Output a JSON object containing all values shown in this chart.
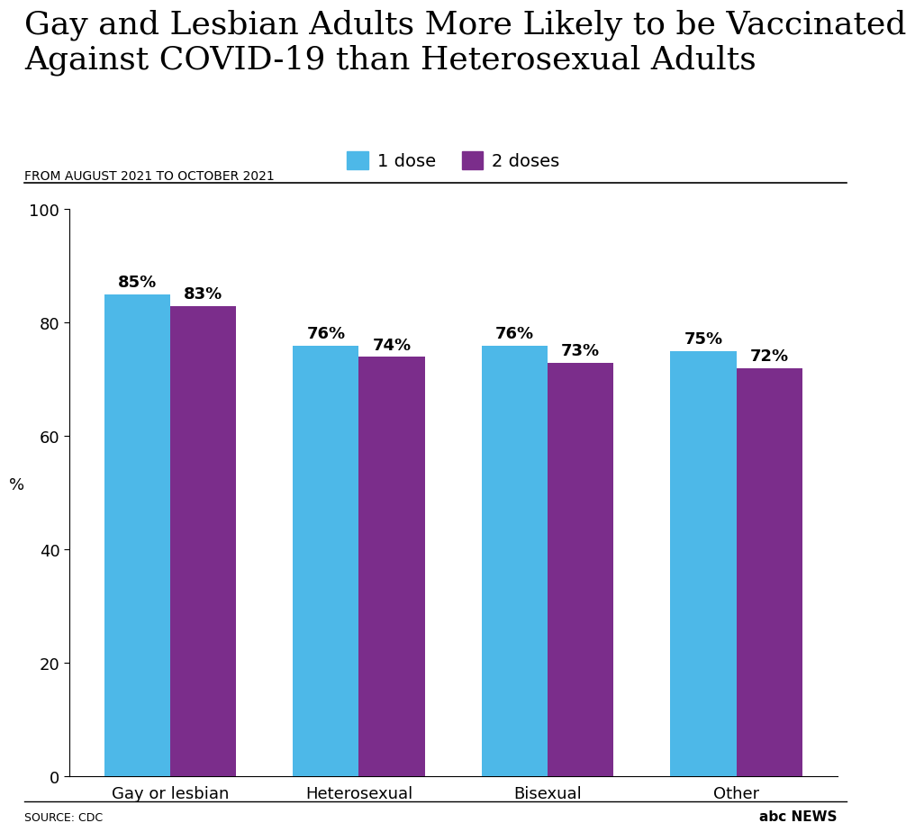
{
  "title": "Gay and Lesbian Adults More Likely to be Vaccinated\nAgainst COVID-19 than Heterosexual Adults",
  "subtitle": "FROM AUGUST 2021 TO OCTOBER 2021",
  "source": "SOURCE: CDC",
  "categories": [
    "Gay or lesbian",
    "Heterosexual",
    "Bisexual",
    "Other"
  ],
  "dose1_values": [
    85,
    76,
    76,
    75
  ],
  "dose2_values": [
    83,
    74,
    73,
    72
  ],
  "dose1_color": "#4DB8E8",
  "dose2_color": "#7B2D8B",
  "ylabel": "%",
  "ylim": [
    0,
    100
  ],
  "yticks": [
    0,
    20,
    40,
    60,
    80,
    100
  ],
  "legend_label1": "1 dose",
  "legend_label2": "2 doses",
  "background_color": "#FFFFFF",
  "bar_width": 0.35,
  "title_fontsize": 26,
  "subtitle_fontsize": 10,
  "tick_fontsize": 13,
  "label_fontsize": 13,
  "value_fontsize": 13,
  "legend_fontsize": 14
}
